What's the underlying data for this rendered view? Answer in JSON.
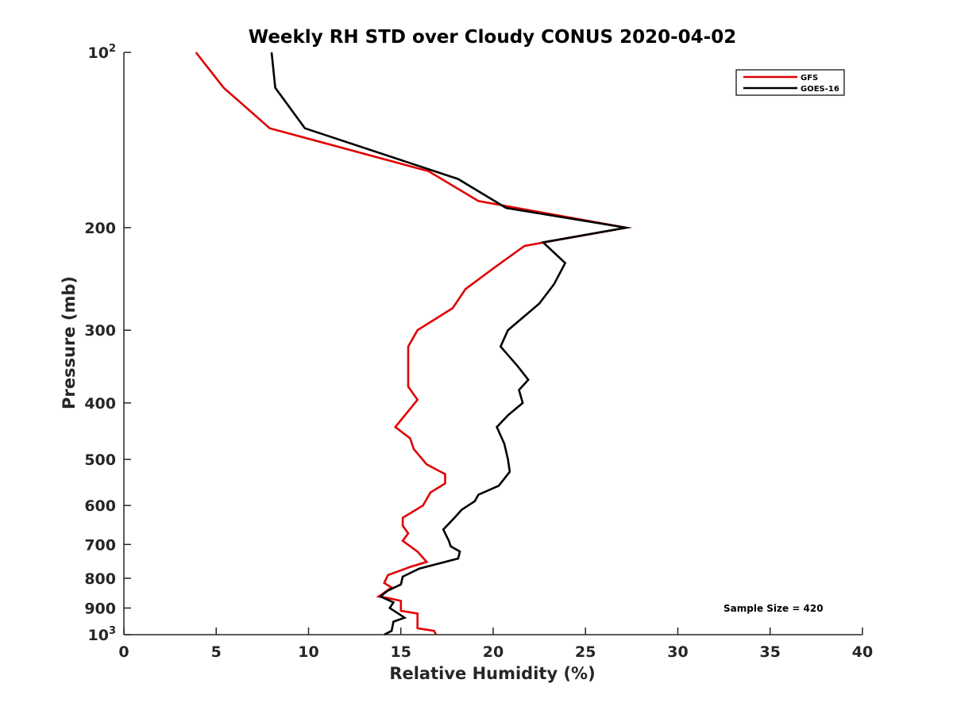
{
  "chart_data": {
    "type": "line",
    "title": "Weekly RH STD over Cloudy CONUS 2020-04-02",
    "xlabel": "Relative Humidity (%)",
    "ylabel": "Pressure (mb)",
    "xlim": [
      0,
      40
    ],
    "ylim": [
      100,
      1000
    ],
    "yscale": "log",
    "yreversed": true,
    "x_ticks": [
      "0",
      "5",
      "10",
      "15",
      "20",
      "25",
      "30",
      "35",
      "40"
    ],
    "y_ticks": [
      {
        "value": 100,
        "base": "10",
        "exp": "2"
      },
      {
        "value": 200,
        "label": "200"
      },
      {
        "value": 300,
        "label": "300"
      },
      {
        "value": 400,
        "label": "400"
      },
      {
        "value": 500,
        "label": "500"
      },
      {
        "value": 600,
        "label": "600"
      },
      {
        "value": 700,
        "label": "700"
      },
      {
        "value": 800,
        "label": "800"
      },
      {
        "value": 900,
        "label": "900"
      },
      {
        "value": 1000,
        "base": "10",
        "exp": "3"
      }
    ],
    "legend_position": "top-right",
    "annotation": "Sample Size = 420",
    "series": [
      {
        "name": "GFS",
        "color": "#e00000",
        "points": [
          [
            3.9,
            100
          ],
          [
            5.4,
            115
          ],
          [
            7.9,
            135
          ],
          [
            16.5,
            160
          ],
          [
            19.2,
            180
          ],
          [
            27.2,
            200
          ],
          [
            21.7,
            215
          ],
          [
            20.0,
            235
          ],
          [
            18.5,
            255
          ],
          [
            17.8,
            275
          ],
          [
            15.9,
            300
          ],
          [
            15.4,
            320
          ],
          [
            15.4,
            350
          ],
          [
            15.4,
            375
          ],
          [
            15.9,
            395
          ],
          [
            14.7,
            440
          ],
          [
            15.5,
            460
          ],
          [
            15.7,
            480
          ],
          [
            16.4,
            510
          ],
          [
            17.4,
            530
          ],
          [
            17.4,
            550
          ],
          [
            16.6,
            570
          ],
          [
            16.2,
            600
          ],
          [
            15.1,
            630
          ],
          [
            15.1,
            650
          ],
          [
            15.4,
            670
          ],
          [
            15.1,
            690
          ],
          [
            15.9,
            720
          ],
          [
            16.4,
            750
          ],
          [
            15.5,
            765
          ],
          [
            14.3,
            790
          ],
          [
            14.1,
            815
          ],
          [
            14.5,
            830
          ],
          [
            13.8,
            860
          ],
          [
            14.3,
            865
          ],
          [
            15.0,
            875
          ],
          [
            15.0,
            910
          ],
          [
            15.9,
            920
          ],
          [
            15.9,
            975
          ],
          [
            16.8,
            985
          ],
          [
            16.9,
            1000
          ]
        ]
      },
      {
        "name": "GOES-16",
        "color": "#000000",
        "points": [
          [
            8.0,
            100
          ],
          [
            8.2,
            115
          ],
          [
            9.8,
            135
          ],
          [
            18.1,
            165
          ],
          [
            20.7,
            185
          ],
          [
            27.2,
            200
          ],
          [
            22.7,
            212
          ],
          [
            23.9,
            230
          ],
          [
            23.3,
            250
          ],
          [
            22.5,
            270
          ],
          [
            20.8,
            300
          ],
          [
            20.4,
            320
          ],
          [
            21.3,
            345
          ],
          [
            21.9,
            365
          ],
          [
            21.4,
            380
          ],
          [
            21.6,
            400
          ],
          [
            20.8,
            420
          ],
          [
            20.2,
            440
          ],
          [
            20.6,
            470
          ],
          [
            20.8,
            500
          ],
          [
            20.9,
            525
          ],
          [
            20.3,
            555
          ],
          [
            19.2,
            575
          ],
          [
            19.0,
            590
          ],
          [
            18.3,
            610
          ],
          [
            17.9,
            630
          ],
          [
            17.3,
            660
          ],
          [
            17.6,
            690
          ],
          [
            17.7,
            705
          ],
          [
            18.2,
            720
          ],
          [
            18.1,
            740
          ],
          [
            16.0,
            770
          ],
          [
            15.1,
            795
          ],
          [
            15.0,
            820
          ],
          [
            14.3,
            840
          ],
          [
            13.9,
            860
          ],
          [
            14.6,
            880
          ],
          [
            14.4,
            900
          ],
          [
            15.2,
            935
          ],
          [
            14.6,
            950
          ],
          [
            14.5,
            985
          ],
          [
            14.1,
            1000
          ]
        ]
      }
    ]
  }
}
